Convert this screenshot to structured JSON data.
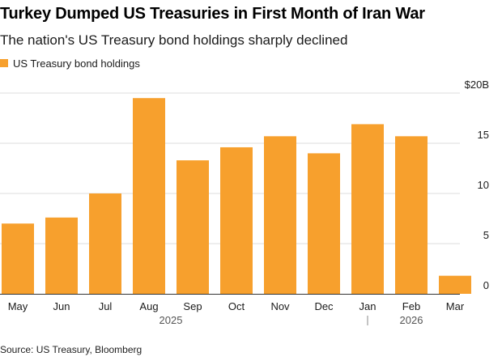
{
  "colors": {
    "bar": "#f7a02d",
    "grid": "#dddddd",
    "axis": "#333333"
  },
  "chart_data": {
    "type": "bar",
    "title": "Turkey Dumped US Treasuries in First Month of Iran War",
    "subtitle": "The nation's US Treasury bond holdings sharply declined",
    "legend": {
      "entries": [
        "US Treasury bond holdings"
      ],
      "placement": "top-left"
    },
    "categories": [
      "May",
      "Jun",
      "Jul",
      "Aug",
      "Sep",
      "Oct",
      "Nov",
      "Dec",
      "Jan",
      "Feb",
      "Mar"
    ],
    "year_labels": [
      {
        "label": "2025",
        "span": [
          "May",
          "Dec"
        ]
      },
      {
        "label": "2026",
        "span": [
          "Jan",
          "Mar"
        ]
      }
    ],
    "series": [
      {
        "name": "US Treasury bond holdings",
        "values": [
          7.0,
          7.6,
          10.0,
          19.5,
          13.3,
          14.6,
          15.7,
          14.0,
          16.9,
          15.7,
          1.8
        ]
      }
    ],
    "ylim": [
      0,
      20
    ],
    "yticks": [
      0,
      5,
      10,
      15,
      20
    ],
    "ytick_labels": [
      "0",
      "5",
      "10",
      "15",
      "$20B"
    ],
    "yaxis_position": "right",
    "grid": true,
    "source": "Source: US Treasury, Bloomberg"
  }
}
